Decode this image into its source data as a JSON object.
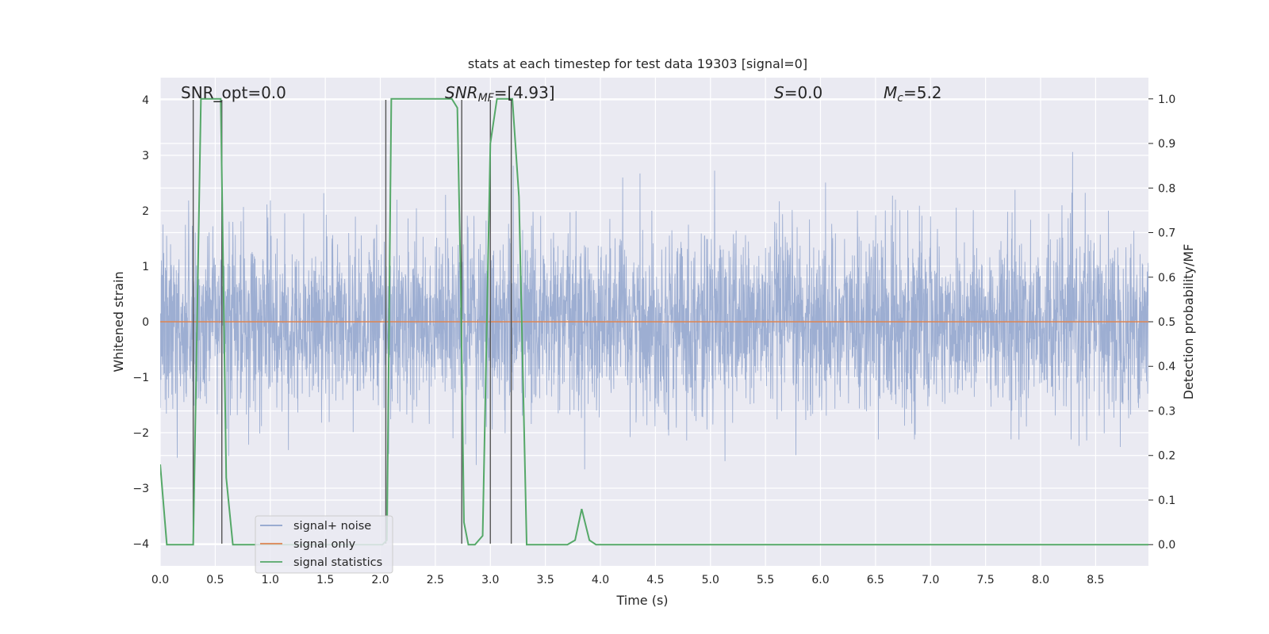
{
  "chart_data": {
    "type": "line",
    "title": "stats at each timestep for test data 19303 [signal=0]",
    "xlabel": "Time (s)",
    "ylabel_left": "Whitened strain",
    "ylabel_right": "Detection probability/MF",
    "xlim": [
      0.0,
      8.98
    ],
    "ylim_left": [
      -4.4,
      4.4
    ],
    "ylim_right": [
      -0.0476,
      1.0476
    ],
    "x_ticks": [
      "0.0",
      "0.5",
      "1.0",
      "1.5",
      "2.0",
      "2.5",
      "3.0",
      "3.5",
      "4.0",
      "4.5",
      "5.0",
      "5.5",
      "6.0",
      "6.5",
      "7.0",
      "7.5",
      "8.0",
      "8.5"
    ],
    "y_ticks_left": [
      "4",
      "3",
      "2",
      "1",
      "0",
      "−1",
      "−2",
      "−3",
      "−4"
    ],
    "y_ticks_right": [
      "1.0",
      "0.9",
      "0.8",
      "0.7",
      "0.6",
      "0.5",
      "0.4",
      "0.3",
      "0.2",
      "0.1",
      "0.0"
    ],
    "grid": true,
    "legend_position": "lower-left",
    "annotations": {
      "snr_opt": "SNR_opt=0.0",
      "snr_mf_base": "SNR",
      "snr_mf_sub": "MF",
      "snr_mf_rest": "=[4.93]",
      "s_italic": "S",
      "s_rest": "=0.0",
      "mc_italic": "M",
      "mc_sub": "c",
      "mc_rest": "=5.2"
    },
    "series": [
      {
        "name": "signal+ noise",
        "color": "#8fa3cc",
        "axis": "left",
        "description": "whitened strain noise, approx. mean 0, std 0.8, t from 0 to 8.98 s",
        "std": 0.8
      },
      {
        "name": "signal only",
        "color": "#dd8452",
        "axis": "left",
        "values_constant": 0
      },
      {
        "name": "signal statistics",
        "color": "#55a868",
        "axis": "right",
        "x": [
          0.0,
          0.06,
          0.13,
          0.2,
          0.26,
          0.3,
          0.37,
          0.44,
          0.5,
          0.55,
          0.6,
          0.66,
          0.7,
          0.76,
          0.8,
          0.86,
          0.9,
          1.0,
          1.1,
          1.2,
          1.3,
          1.4,
          1.5,
          1.6,
          1.7,
          1.8,
          1.9,
          2.0,
          2.02,
          2.06,
          2.1,
          2.13,
          2.2,
          2.3,
          2.4,
          2.5,
          2.6,
          2.65,
          2.7,
          2.73,
          2.76,
          2.8,
          2.86,
          2.93,
          3.0,
          3.06,
          3.13,
          3.2,
          3.26,
          3.33,
          3.4,
          3.5,
          3.6,
          3.7,
          3.77,
          3.83,
          3.9,
          3.96,
          4.0,
          4.5,
          5.0,
          5.5,
          6.0,
          6.5,
          7.0,
          7.5,
          8.0,
          8.5,
          8.98
        ],
        "values": [
          0.18,
          0.0,
          0.0,
          0.0,
          0.0,
          0.0,
          1.0,
          1.0,
          1.0,
          1.0,
          0.15,
          0.0,
          0.0,
          0.0,
          0.0,
          0.0,
          0.0,
          0.0,
          0.0,
          0.0,
          0.0,
          0.0,
          0.0,
          0.0,
          0.0,
          0.0,
          0.0,
          0.0,
          0.0,
          0.01,
          1.0,
          1.0,
          1.0,
          1.0,
          1.0,
          1.0,
          1.0,
          1.0,
          0.98,
          0.6,
          0.05,
          0.0,
          0.0,
          0.02,
          0.9,
          1.0,
          1.0,
          1.0,
          0.78,
          0.0,
          0.0,
          0.0,
          0.0,
          0.0,
          0.01,
          0.08,
          0.01,
          0.0,
          0.0,
          0.0,
          0.0,
          0.0,
          0.0,
          0.0,
          0.0,
          0.0,
          0.0,
          0.0,
          0.0
        ]
      }
    ],
    "vertical_markers_x": [
      0.3,
      0.56,
      2.05,
      2.74,
      3.0,
      3.19
    ]
  }
}
